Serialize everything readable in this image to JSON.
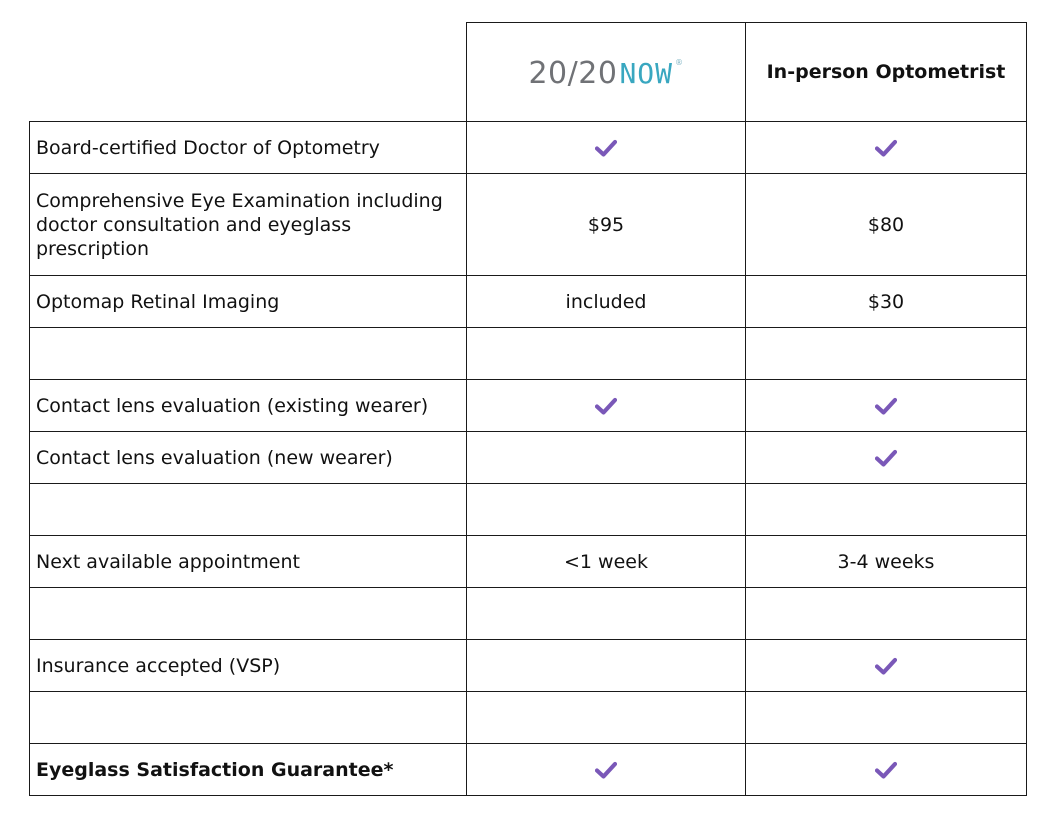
{
  "header": {
    "logo": {
      "part_a": "20/20",
      "part_b": "NOW",
      "registered": "®",
      "colors": {
        "part_a": "#707276",
        "part_b": "#39a7c0"
      }
    },
    "col2_title": "In-person Optometrist"
  },
  "check_color": "#7a58b8",
  "rows": {
    "r0": {
      "label": "Board-certified Doctor of Optometry",
      "now_check": true,
      "opt_check": true
    },
    "r1": {
      "label": "Comprehensive Eye Examination including doctor consultation and eyeglass prescription",
      "now": "$95",
      "opt": "$80"
    },
    "r2": {
      "label": "Optomap Retinal Imaging",
      "now": "included",
      "opt": "$30"
    },
    "r3": {
      "label": "",
      "now": "",
      "opt": ""
    },
    "r4": {
      "label": "Contact lens evaluation (existing wearer)",
      "now_check": true,
      "opt_check": true
    },
    "r5": {
      "label": "Contact lens evaluation (new wearer)",
      "now_check": false,
      "opt_check": true
    },
    "r6": {
      "label": "",
      "now": "",
      "opt": ""
    },
    "r7": {
      "label": "Next available appointment",
      "now": "<1 week",
      "opt": "3-4 weeks"
    },
    "r8": {
      "label": "",
      "now": "",
      "opt": ""
    },
    "r9": {
      "label": "Insurance accepted (VSP)",
      "now_check": false,
      "opt_check": true
    },
    "r10": {
      "label": "",
      "now": "",
      "opt": ""
    },
    "r11": {
      "label": "Eyeglass Satisfaction Guarantee*",
      "now_check": true,
      "opt_check": true
    }
  }
}
